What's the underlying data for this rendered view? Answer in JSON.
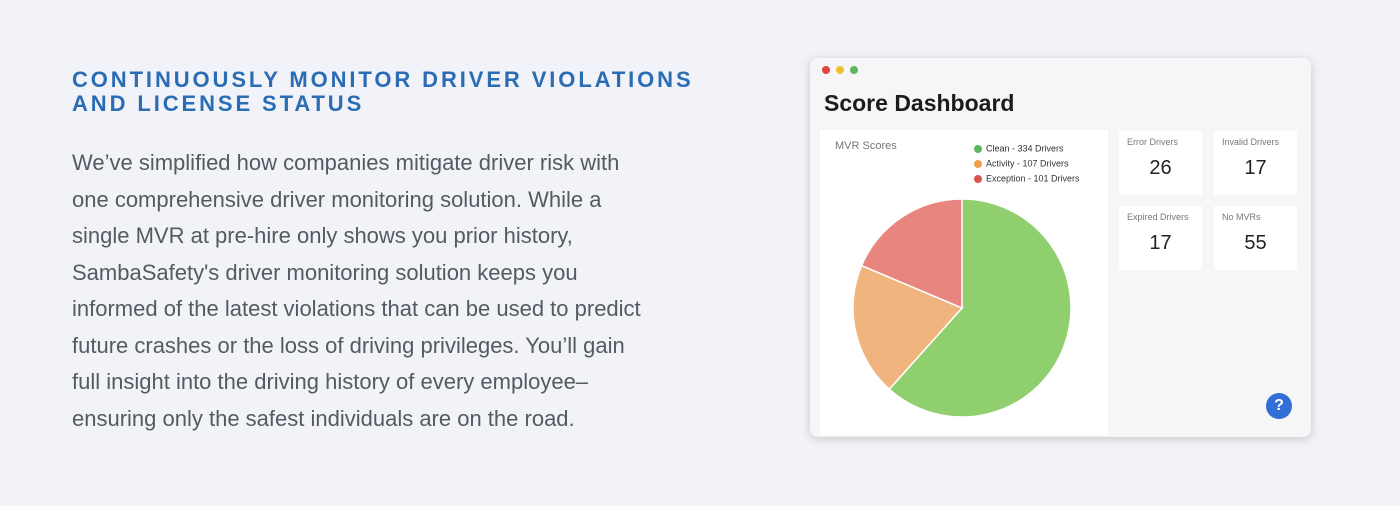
{
  "heading": [
    "CONTINUOUSLY MONITOR DRIVER VIOLATIONS",
    "AND LICENSE STATUS"
  ],
  "body_lines": [
    "We’ve simplified how companies mitigate driver risk with",
    "one comprehensive driver monitoring solution. While a",
    "single MVR at pre-hire only shows you prior history,",
    "SambaSafety's driver monitoring solution keeps you",
    "informed of the latest violations that can be used to predict",
    "future crashes or the loss of driving privileges. You’ll gain",
    "full insight into the driving history of every employee–",
    "ensuring only the safest individuals are on the road."
  ],
  "dashboard": {
    "title": "Score Dashboard",
    "chart": {
      "type": "pie",
      "title": "MVR Scores",
      "legend_labels": [
        "Clean - 334 Drivers",
        "Activity - 107 Drivers",
        "Exception - 101 Drivers"
      ],
      "values": [
        334,
        107,
        101
      ],
      "colors": [
        "#8fcf6e",
        "#f0b47e",
        "#e8857e"
      ],
      "legend_colors": [
        "#5cb85c",
        "#f0a04b",
        "#d9534f"
      ]
    },
    "stats": [
      {
        "label": "Error Drivers",
        "value": 26
      },
      {
        "label": "Invalid Drivers",
        "value": 17
      },
      {
        "label": "Expired Drivers",
        "value": 17
      },
      {
        "label": "No MVRs",
        "value": 55
      }
    ],
    "help_label": "?"
  }
}
